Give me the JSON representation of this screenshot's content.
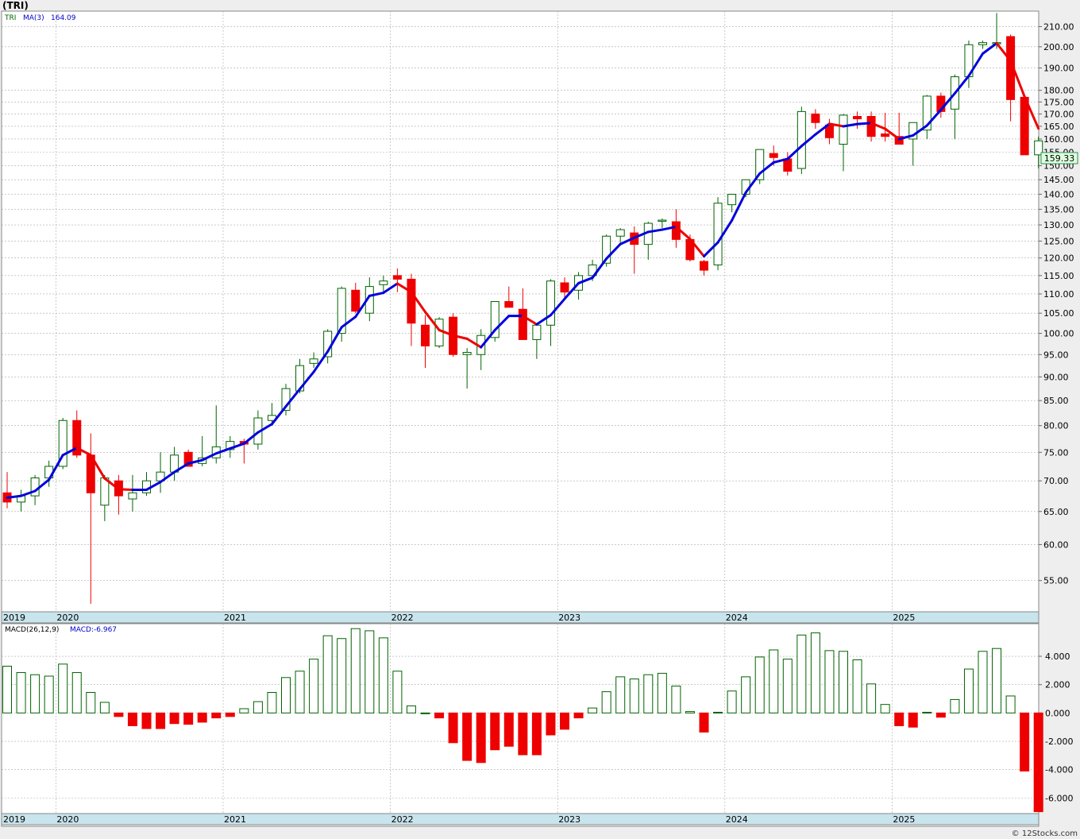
{
  "header": {
    "title": "(TRI)",
    "legend_symbol": "TRI",
    "legend_ma_label": "MA(3)",
    "legend_ma_value": "164.09",
    "last_price": "159.33"
  },
  "macd_panel": {
    "label": "MACD(26,12,9)",
    "value_label": "MACD:-6.967"
  },
  "footer": {
    "credit": "© 12Stocks.com"
  },
  "colors": {
    "up_candle": "#006400",
    "down_candle": "#ee0000",
    "ma_up": "#0000dd",
    "ma_down": "#ee0000",
    "year_band": "#c8e4ec",
    "grid": "#aaaaaa",
    "price_box_border": "#2e8b57",
    "price_box_fill": "#ddffdd"
  },
  "chart_data": [
    {
      "type": "candlestick",
      "title": "(TRI)",
      "frequency": "monthly",
      "scale": "log",
      "grid": true,
      "ylim": [
        51,
        218
      ],
      "y_ticks": [
        "55.00",
        "60.00",
        "65.00",
        "70.00",
        "75.00",
        "80.00",
        "85.00",
        "90.00",
        "95.00",
        "100.00",
        "105.00",
        "110.00",
        "115.00",
        "120.00",
        "125.00",
        "130.00",
        "135.00",
        "140.00",
        "145.00",
        "150.00",
        "155.00",
        "160.00",
        "165.00",
        "170.00",
        "175.00",
        "180.00",
        "190.00",
        "200.00",
        "210.00"
      ],
      "x_labels": [
        "2019",
        "2020",
        "2021",
        "2022",
        "2023",
        "2024",
        "2025"
      ],
      "series": [
        {
          "name": "TRI",
          "ohlc": [
            [
              68.0,
              71.5,
              65.5,
              66.5
            ],
            [
              66.5,
              68.5,
              65.0,
              67.5
            ],
            [
              67.5,
              71.0,
              66.0,
              70.5
            ],
            [
              70.5,
              73.5,
              69.0,
              72.5
            ],
            [
              72.5,
              81.5,
              72.0,
              81.0
            ],
            [
              81.0,
              83.0,
              74.0,
              74.5
            ],
            [
              74.5,
              78.5,
              52.0,
              68.0
            ],
            [
              66.0,
              71.0,
              63.5,
              70.5
            ],
            [
              70.0,
              71.0,
              64.5,
              67.5
            ],
            [
              67.0,
              71.0,
              65.0,
              68.0
            ],
            [
              68.0,
              71.5,
              67.5,
              70.0
            ],
            [
              70.0,
              75.0,
              68.0,
              71.5
            ],
            [
              71.5,
              76.0,
              70.0,
              74.5
            ],
            [
              75.0,
              75.5,
              72.5,
              72.5
            ],
            [
              73.0,
              78.0,
              72.5,
              74.0
            ],
            [
              74.0,
              84.0,
              73.0,
              76.0
            ],
            [
              75.5,
              78.0,
              74.0,
              77.0
            ],
            [
              77.0,
              77.5,
              73.0,
              76.5
            ],
            [
              76.5,
              83.0,
              75.5,
              81.5
            ],
            [
              81.0,
              84.5,
              80.0,
              82.0
            ],
            [
              83.0,
              88.5,
              82.0,
              87.5
            ],
            [
              87.0,
              94.0,
              86.5,
              92.5
            ],
            [
              93.0,
              95.5,
              92.0,
              94.0
            ],
            [
              94.5,
              101.0,
              93.0,
              100.5
            ],
            [
              100.0,
              112.0,
              98.0,
              111.5
            ],
            [
              111.0,
              113.0,
              105.0,
              105.5
            ],
            [
              105.0,
              114.5,
              103.0,
              112.0
            ],
            [
              112.5,
              115.0,
              110.0,
              113.5
            ],
            [
              115.0,
              117.0,
              110.5,
              114.0
            ],
            [
              114.0,
              115.5,
              97.0,
              102.5
            ],
            [
              102.0,
              104.5,
              92.0,
              97.0
            ],
            [
              97.0,
              104.0,
              96.5,
              103.5
            ],
            [
              104.0,
              105.0,
              94.5,
              95.0
            ],
            [
              95.0,
              96.5,
              87.5,
              95.5
            ],
            [
              95.0,
              101.0,
              91.5,
              99.5
            ],
            [
              99.0,
              108.0,
              98.0,
              108.0
            ],
            [
              108.0,
              112.0,
              106.5,
              106.5
            ],
            [
              106.0,
              111.5,
              98.5,
              98.5
            ],
            [
              98.5,
              102.5,
              94.0,
              102.0
            ],
            [
              102.0,
              114.0,
              97.0,
              113.5
            ],
            [
              113.0,
              114.5,
              109.0,
              110.5
            ],
            [
              111.0,
              116.0,
              108.5,
              115.0
            ],
            [
              115.0,
              119.5,
              113.5,
              118.0
            ],
            [
              118.5,
              127.0,
              117.5,
              126.5
            ],
            [
              126.5,
              129.0,
              124.5,
              128.5
            ],
            [
              127.5,
              129.5,
              115.5,
              124.0
            ],
            [
              124.0,
              131.0,
              119.5,
              130.5
            ],
            [
              131.5,
              132.0,
              129.0,
              131.5
            ],
            [
              131.0,
              135.0,
              123.0,
              125.5
            ],
            [
              125.5,
              127.0,
              119.0,
              119.5
            ],
            [
              119.0,
              119.5,
              115.0,
              116.5
            ],
            [
              118.0,
              139.0,
              116.5,
              137.0
            ],
            [
              136.5,
              140.0,
              134.0,
              140.0
            ],
            [
              140.0,
              145.0,
              139.0,
              145.0
            ],
            [
              145.0,
              156.0,
              143.5,
              156.0
            ],
            [
              154.5,
              157.5,
              150.0,
              153.0
            ],
            [
              152.5,
              155.0,
              146.5,
              148.0
            ],
            [
              149.0,
              173.0,
              147.0,
              171.0
            ],
            [
              170.0,
              172.0,
              164.0,
              166.5
            ],
            [
              165.5,
              168.0,
              158.0,
              160.5
            ],
            [
              158.0,
              170.0,
              148.0,
              169.5
            ],
            [
              169.0,
              171.0,
              164.0,
              168.0
            ],
            [
              169.0,
              171.0,
              159.0,
              161.0
            ],
            [
              162.0,
              170.5,
              159.0,
              161.0
            ],
            [
              161.0,
              170.5,
              158.0,
              158.0
            ],
            [
              160.0,
              165.0,
              150.0,
              166.5
            ],
            [
              163.5,
              178.0,
              160.0,
              177.5
            ],
            [
              177.5,
              179.0,
              168.5,
              171.0
            ],
            [
              172.0,
              187.0,
              160.0,
              186.0
            ],
            [
              186.0,
              203.0,
              181.0,
              201.0
            ],
            [
              201.0,
              203.0,
              199.0,
              202.0
            ],
            [
              202.0,
              217.0,
              199.0,
              202.0
            ],
            [
              205.0,
              206.0,
              167.0,
              176.0
            ],
            [
              177.0,
              178.0,
              154.0,
              154.0
            ],
            [
              154.0,
              161.0,
              149.0,
              159.3
            ]
          ],
          "ma3": [
            67.2,
            67.5,
            68.3,
            70.2,
            74.5,
            75.8,
            74.5,
            70.4,
            68.6,
            68.5,
            68.5,
            69.8,
            71.5,
            73.0,
            73.6,
            74.8,
            75.7,
            76.6,
            78.7,
            80.3,
            83.8,
            87.4,
            91.1,
            95.7,
            101.5,
            104.1,
            109.5,
            110.3,
            112.8,
            110.5,
            105.3,
            100.8,
            99.5,
            98.7,
            96.7,
            100.8,
            104.3,
            104.3,
            102.2,
            104.5,
            108.7,
            112.9,
            114.4,
            119.8,
            124.1,
            126.0,
            127.8,
            128.5,
            129.4,
            125.6,
            120.5,
            124.6,
            131.4,
            140.6,
            147.2,
            151.2,
            152.5,
            157.3,
            161.8,
            166.0,
            165.0,
            165.9,
            166.3,
            164.0,
            160.0,
            161.4,
            165.3,
            171.7,
            178.7,
            186.4,
            196.7,
            201.7,
            193.3,
            177.3,
            164.1
          ]
        }
      ]
    },
    {
      "type": "bar",
      "title": "MACD(26,12,9)",
      "ylim": [
        -7.1,
        6.3
      ],
      "y_ticks": [
        "4.000",
        "2.000",
        "0.000",
        "-2.000",
        "-4.000",
        "-6.000"
      ],
      "series": [
        {
          "name": "MACD",
          "values": [
            3.3,
            2.85,
            2.7,
            2.6,
            3.45,
            2.85,
            1.45,
            0.75,
            -0.25,
            -0.9,
            -1.1,
            -1.1,
            -0.75,
            -0.8,
            -0.65,
            -0.35,
            -0.25,
            0.3,
            0.8,
            1.45,
            2.5,
            2.95,
            3.8,
            5.45,
            5.25,
            5.95,
            5.8,
            5.3,
            2.95,
            0.5,
            0,
            -0.35,
            -2.1,
            -3.35,
            -3.5,
            -2.6,
            -2.35,
            -2.95,
            -2.95,
            -1.55,
            -1.15,
            -0.35,
            0.35,
            1.5,
            2.55,
            2.4,
            2.7,
            2.8,
            1.9,
            0.1,
            -1.35,
            0.05,
            1.55,
            2.55,
            3.95,
            4.45,
            3.8,
            5.5,
            5.65,
            4.4,
            4.35,
            3.75,
            2.05,
            0.6,
            -0.9,
            -1.0,
            0.05,
            -0.3,
            0.95,
            3.1,
            4.35,
            4.55,
            1.2,
            -4.1,
            -6.967
          ]
        }
      ]
    }
  ]
}
